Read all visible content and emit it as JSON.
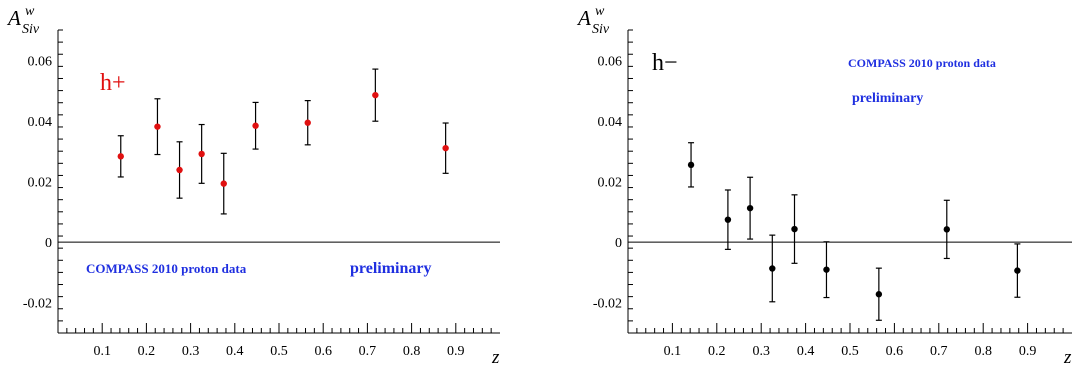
{
  "chart_data": [
    {
      "type": "scatter",
      "series_label": "h+",
      "label_color": "#e01010",
      "point_color": "#e01010",
      "ylabel_main": "A",
      "ylabel_sup": "w",
      "ylabel_sub": "Siv",
      "xlabel": "z",
      "annotation_left": "COMPASS 2010 proton data",
      "annotation_right": "preliminary",
      "annotation_color": "#1f2fe0",
      "xlim": [
        0,
        1
      ],
      "ylim": [
        -0.03,
        0.07
      ],
      "x_ticks": [
        0.1,
        0.2,
        0.3,
        0.4,
        0.5,
        0.6,
        0.7,
        0.8,
        0.9
      ],
      "x_tick_labels": [
        "0.1",
        "0.2",
        "0.3",
        "0.4",
        "0.5",
        "0.6",
        "0.7",
        "0.8",
        "0.9"
      ],
      "y_ticks": [
        -0.02,
        0,
        0.02,
        0.04,
        0.06
      ],
      "y_tick_labels": [
        "-0.02",
        "0",
        "0.02",
        "0.04",
        "0.06"
      ],
      "points": [
        {
          "x": 0.142,
          "y": 0.0283,
          "err": 0.0068
        },
        {
          "x": 0.225,
          "y": 0.0381,
          "err": 0.0092
        },
        {
          "x": 0.275,
          "y": 0.0238,
          "err": 0.0093
        },
        {
          "x": 0.325,
          "y": 0.0291,
          "err": 0.0097
        },
        {
          "x": 0.375,
          "y": 0.0193,
          "err": 0.01
        },
        {
          "x": 0.447,
          "y": 0.0384,
          "err": 0.0077
        },
        {
          "x": 0.565,
          "y": 0.0394,
          "err": 0.0073
        },
        {
          "x": 0.718,
          "y": 0.0485,
          "err": 0.0086
        },
        {
          "x": 0.877,
          "y": 0.031,
          "err": 0.0083
        }
      ]
    },
    {
      "type": "scatter",
      "series_label": "h−",
      "label_color": "#000000",
      "point_color": "#000000",
      "ylabel_main": "A",
      "ylabel_sup": "w",
      "ylabel_sub": "Siv",
      "xlabel": "z",
      "annotation_top": "COMPASS 2010 proton data",
      "annotation_top2": "preliminary",
      "annotation_color": "#1f2fe0",
      "xlim": [
        0,
        1
      ],
      "ylim": [
        -0.03,
        0.07
      ],
      "x_ticks": [
        0.1,
        0.2,
        0.3,
        0.4,
        0.5,
        0.6,
        0.7,
        0.8,
        0.9
      ],
      "x_tick_labels": [
        "0.1",
        "0.2",
        "0.3",
        "0.4",
        "0.5",
        "0.6",
        "0.7",
        "0.8",
        "0.9"
      ],
      "y_ticks": [
        -0.02,
        0,
        0.02,
        0.04,
        0.06
      ],
      "y_tick_labels": [
        "-0.02",
        "0",
        "0.02",
        "0.04",
        "0.06"
      ],
      "points": [
        {
          "x": 0.142,
          "y": 0.0255,
          "err": 0.0073
        },
        {
          "x": 0.225,
          "y": 0.0074,
          "err": 0.0098
        },
        {
          "x": 0.275,
          "y": 0.0112,
          "err": 0.0102
        },
        {
          "x": 0.325,
          "y": -0.0087,
          "err": 0.011
        },
        {
          "x": 0.375,
          "y": 0.0043,
          "err": 0.0113
        },
        {
          "x": 0.447,
          "y": -0.0091,
          "err": 0.0092
        },
        {
          "x": 0.565,
          "y": -0.0172,
          "err": 0.0086
        },
        {
          "x": 0.718,
          "y": 0.0042,
          "err": 0.0096
        },
        {
          "x": 0.877,
          "y": -0.0094,
          "err": 0.0088
        }
      ]
    }
  ]
}
